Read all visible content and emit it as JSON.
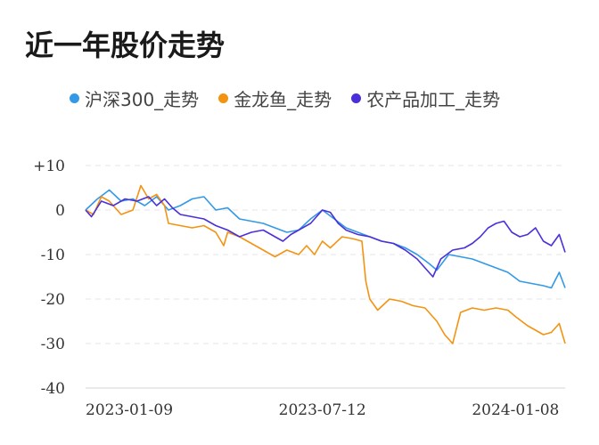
{
  "title": "近一年股价走势",
  "legend": [
    {
      "label": "沪深300_走势",
      "color": "#3399e6"
    },
    {
      "label": "金龙鱼_走势",
      "color": "#f39312"
    },
    {
      "label": "农产品加工_走势",
      "color": "#4a30d9"
    }
  ],
  "chart_data": {
    "type": "line",
    "title": "近一年股价走势",
    "xlabel": "",
    "ylabel": "",
    "ylim": [
      -40,
      10
    ],
    "y_ticks": [
      {
        "value": 10,
        "label": "+10"
      },
      {
        "value": 0,
        "label": "0"
      },
      {
        "value": -10,
        "label": "-10"
      },
      {
        "value": -20,
        "label": "-20"
      },
      {
        "value": -30,
        "label": "-30"
      },
      {
        "value": -40,
        "label": "-40"
      }
    ],
    "x_ticks": [
      {
        "value": 0,
        "label": "2023-01-09"
      },
      {
        "value": 120,
        "label": "2023-07-12"
      },
      {
        "value": 240,
        "label": "2024-01-08"
      }
    ],
    "grid": true,
    "legend_position": "top",
    "series": [
      {
        "name": "沪深300_走势",
        "color": "#3399e6",
        "points": [
          [
            0,
            0
          ],
          [
            6,
            2.5
          ],
          [
            12,
            4.5
          ],
          [
            18,
            2
          ],
          [
            24,
            2.5
          ],
          [
            30,
            1
          ],
          [
            36,
            3
          ],
          [
            42,
            0
          ],
          [
            48,
            1
          ],
          [
            54,
            2.5
          ],
          [
            60,
            3
          ],
          [
            66,
            0
          ],
          [
            72,
            0.5
          ],
          [
            78,
            -2
          ],
          [
            84,
            -2.5
          ],
          [
            90,
            -3
          ],
          [
            96,
            -4
          ],
          [
            102,
            -5
          ],
          [
            108,
            -4.5
          ],
          [
            114,
            -2
          ],
          [
            120,
            0
          ],
          [
            126,
            -2
          ],
          [
            132,
            -4
          ],
          [
            138,
            -5
          ],
          [
            144,
            -6
          ],
          [
            150,
            -7
          ],
          [
            156,
            -7.5
          ],
          [
            162,
            -8.5
          ],
          [
            168,
            -10
          ],
          [
            174,
            -12
          ],
          [
            178,
            -13.5
          ],
          [
            184,
            -10
          ],
          [
            190,
            -10.5
          ],
          [
            196,
            -11
          ],
          [
            202,
            -12
          ],
          [
            208,
            -13
          ],
          [
            214,
            -14
          ],
          [
            220,
            -16
          ],
          [
            226,
            -16.5
          ],
          [
            232,
            -17
          ],
          [
            236,
            -17.5
          ],
          [
            240,
            -14
          ],
          [
            243,
            -17.5
          ]
        ]
      },
      {
        "name": "金龙鱼_走势",
        "color": "#f39312",
        "points": [
          [
            0,
            0
          ],
          [
            4,
            -1
          ],
          [
            8,
            3
          ],
          [
            12,
            2
          ],
          [
            18,
            -1
          ],
          [
            24,
            0
          ],
          [
            28,
            5.5
          ],
          [
            32,
            2.5
          ],
          [
            36,
            3.5
          ],
          [
            40,
            1
          ],
          [
            42,
            -3
          ],
          [
            48,
            -3.5
          ],
          [
            54,
            -4
          ],
          [
            60,
            -3.5
          ],
          [
            66,
            -5
          ],
          [
            70,
            -8
          ],
          [
            72,
            -5
          ],
          [
            78,
            -6
          ],
          [
            84,
            -7.5
          ],
          [
            90,
            -9
          ],
          [
            96,
            -10.5
          ],
          [
            102,
            -9
          ],
          [
            108,
            -10
          ],
          [
            112,
            -8
          ],
          [
            116,
            -10
          ],
          [
            120,
            -7
          ],
          [
            124,
            -8.5
          ],
          [
            130,
            -6
          ],
          [
            136,
            -6.5
          ],
          [
            140,
            -7
          ],
          [
            142,
            -16
          ],
          [
            144,
            -20
          ],
          [
            148,
            -22.5
          ],
          [
            154,
            -20
          ],
          [
            160,
            -20.5
          ],
          [
            166,
            -21.5
          ],
          [
            172,
            -22
          ],
          [
            178,
            -25
          ],
          [
            182,
            -28
          ],
          [
            186,
            -30
          ],
          [
            190,
            -23
          ],
          [
            196,
            -22
          ],
          [
            202,
            -22.5
          ],
          [
            208,
            -22
          ],
          [
            214,
            -22.5
          ],
          [
            218,
            -24
          ],
          [
            224,
            -26
          ],
          [
            228,
            -27
          ],
          [
            232,
            -28
          ],
          [
            236,
            -27.5
          ],
          [
            240,
            -25.5
          ],
          [
            243,
            -30
          ]
        ]
      },
      {
        "name": "农产品加工_走势",
        "color": "#4a30d9",
        "points": [
          [
            0,
            0
          ],
          [
            3,
            -1.5
          ],
          [
            8,
            2
          ],
          [
            14,
            1
          ],
          [
            20,
            2.5
          ],
          [
            26,
            2
          ],
          [
            32,
            3
          ],
          [
            36,
            1
          ],
          [
            40,
            2.5
          ],
          [
            44,
            0.5
          ],
          [
            48,
            -1
          ],
          [
            54,
            -1.5
          ],
          [
            60,
            -2
          ],
          [
            66,
            -3.5
          ],
          [
            72,
            -4.5
          ],
          [
            78,
            -6
          ],
          [
            84,
            -5
          ],
          [
            90,
            -4.5
          ],
          [
            96,
            -6
          ],
          [
            100,
            -7
          ],
          [
            104,
            -5.5
          ],
          [
            108,
            -4.5
          ],
          [
            114,
            -3
          ],
          [
            118,
            -1
          ],
          [
            120,
            0
          ],
          [
            124,
            -0.5
          ],
          [
            128,
            -3
          ],
          [
            132,
            -4.5
          ],
          [
            138,
            -5.5
          ],
          [
            144,
            -6
          ],
          [
            150,
            -7
          ],
          [
            156,
            -7.5
          ],
          [
            162,
            -9
          ],
          [
            168,
            -11
          ],
          [
            172,
            -13
          ],
          [
            176,
            -15
          ],
          [
            180,
            -11
          ],
          [
            186,
            -9
          ],
          [
            192,
            -8.5
          ],
          [
            196,
            -7.5
          ],
          [
            200,
            -6
          ],
          [
            204,
            -4
          ],
          [
            208,
            -3
          ],
          [
            212,
            -2.5
          ],
          [
            216,
            -5
          ],
          [
            220,
            -6
          ],
          [
            224,
            -5.5
          ],
          [
            228,
            -4
          ],
          [
            232,
            -7
          ],
          [
            236,
            -8
          ],
          [
            240,
            -5.5
          ],
          [
            243,
            -9.5
          ]
        ]
      }
    ]
  }
}
